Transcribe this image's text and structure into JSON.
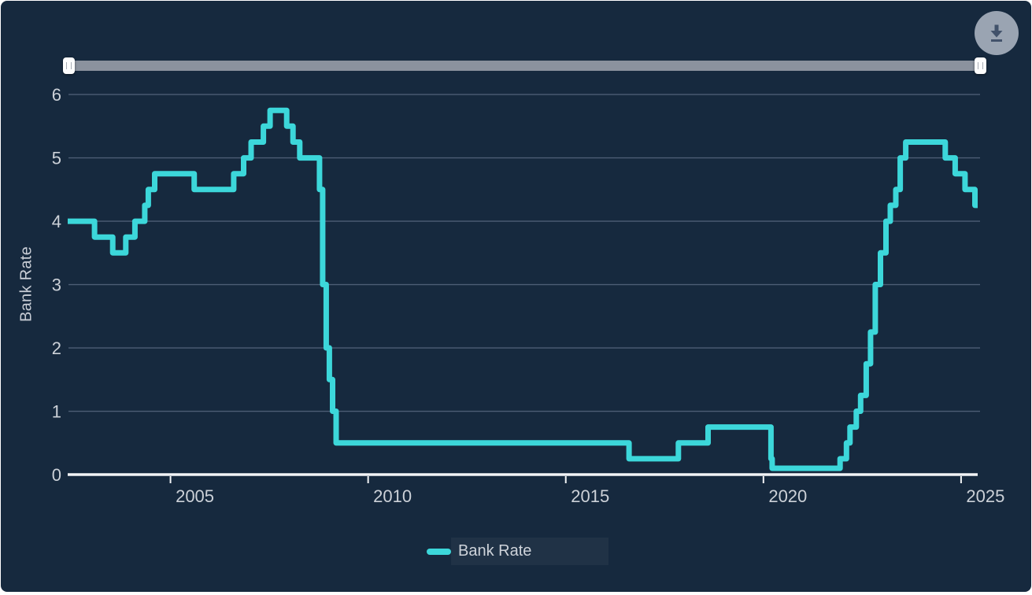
{
  "chart": {
    "y_axis_title": "Bank Rate"
  },
  "legend": {
    "position": "bottom-center",
    "items": [
      {
        "label": "Bank Rate",
        "color": "#3cd7da"
      }
    ]
  },
  "toolbar": {
    "download_icon": "download-icon"
  },
  "colors": {
    "background": "#16293e",
    "series": "#3cd7da",
    "grid": "#4d5d75",
    "axis": "#f2f4f6",
    "tick_label": "#ccd1d8",
    "slider_track": "#8b929e",
    "slider_handle": "#fdfdfd",
    "download_circle": "#9aa4b2",
    "download_glyph": "#42526b"
  },
  "chart_data": {
    "type": "line",
    "step": true,
    "title": "",
    "xlabel": "",
    "ylabel": "Bank Rate",
    "grid": true,
    "legend_position": "bottom-center",
    "xlim": [
      2002.4,
      2025.46
    ],
    "ylim": [
      0,
      6.2
    ],
    "x_ticks": [
      2005,
      2010,
      2015,
      2020,
      2025
    ],
    "y_ticks": [
      0,
      1,
      2,
      3,
      4,
      5,
      6
    ],
    "series": [
      {
        "name": "Bank Rate",
        "color": "#3cd7da",
        "points": [
          [
            2002.4,
            4.0
          ],
          [
            2003.08,
            3.75
          ],
          [
            2003.54,
            3.5
          ],
          [
            2003.87,
            3.75
          ],
          [
            2004.1,
            4.0
          ],
          [
            2004.35,
            4.25
          ],
          [
            2004.44,
            4.5
          ],
          [
            2004.6,
            4.75
          ],
          [
            2005.6,
            4.5
          ],
          [
            2006.6,
            4.75
          ],
          [
            2006.85,
            5.0
          ],
          [
            2007.04,
            5.25
          ],
          [
            2007.35,
            5.5
          ],
          [
            2007.52,
            5.75
          ],
          [
            2007.94,
            5.5
          ],
          [
            2008.1,
            5.25
          ],
          [
            2008.27,
            5.0
          ],
          [
            2008.77,
            4.5
          ],
          [
            2008.85,
            3.0
          ],
          [
            2008.94,
            2.0
          ],
          [
            2009.02,
            1.5
          ],
          [
            2009.1,
            1.0
          ],
          [
            2009.19,
            0.5
          ],
          [
            2016.6,
            0.25
          ],
          [
            2017.85,
            0.5
          ],
          [
            2018.6,
            0.75
          ],
          [
            2020.19,
            0.25
          ],
          [
            2020.22,
            0.1
          ],
          [
            2021.94,
            0.25
          ],
          [
            2022.1,
            0.5
          ],
          [
            2022.19,
            0.75
          ],
          [
            2022.35,
            1.0
          ],
          [
            2022.46,
            1.25
          ],
          [
            2022.6,
            1.75
          ],
          [
            2022.71,
            2.25
          ],
          [
            2022.83,
            3.0
          ],
          [
            2022.96,
            3.5
          ],
          [
            2023.1,
            4.0
          ],
          [
            2023.21,
            4.25
          ],
          [
            2023.35,
            4.5
          ],
          [
            2023.46,
            5.0
          ],
          [
            2023.6,
            5.25
          ],
          [
            2024.6,
            5.0
          ],
          [
            2024.85,
            4.75
          ],
          [
            2025.1,
            4.5
          ],
          [
            2025.35,
            4.25
          ],
          [
            2025.42,
            4.25
          ]
        ]
      }
    ]
  }
}
